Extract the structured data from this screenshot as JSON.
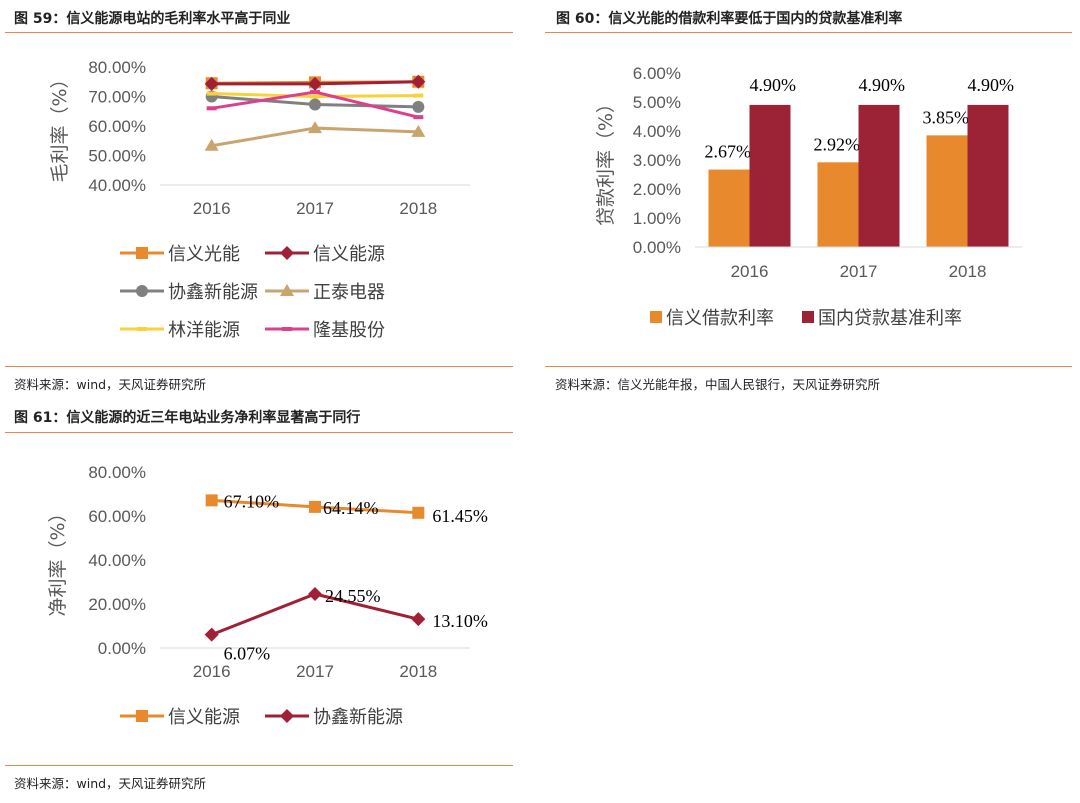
{
  "fig59": {
    "title": "图 59：信义能源电站的毛利率水平高于同业",
    "source": "资料来源：wind，天风证券研究所"
  },
  "fig60": {
    "title": "图 60：信义光能的借款利率要低于国内的贷款基准利率",
    "source": "资料来源：信义光能年报，中国人民银行，天风证券研究所"
  },
  "fig61": {
    "title": "图 61：信义能源的近三年电站业务净利率显著高于同行",
    "source": "资料来源：wind，天风证券研究所"
  },
  "chart_data": [
    {
      "id": "fig59",
      "type": "line",
      "x": [
        "2016",
        "2017",
        "2018"
      ],
      "ylabel": "毛利率（%）",
      "ylim": [
        40,
        80
      ],
      "yticks": [
        "40.00%",
        "50.00%",
        "60.00%",
        "70.00%",
        "80.00%"
      ],
      "grid": false,
      "legend": "bottom",
      "series": [
        {
          "name": "信义光能",
          "values": [
            74.5,
            74.8,
            75.0
          ],
          "color": "#e8892e",
          "marker": "square"
        },
        {
          "name": "信义能源",
          "values": [
            74.3,
            74.3,
            75.0
          ],
          "color": "#a02035",
          "marker": "diamond"
        },
        {
          "name": "协鑫新能源",
          "values": [
            70.0,
            67.3,
            66.5
          ],
          "color": "#808080",
          "marker": "circle"
        },
        {
          "name": "正泰电器",
          "values": [
            53.3,
            59.3,
            58.0
          ],
          "color": "#c9a46c",
          "marker": "triangle"
        },
        {
          "name": "林洋能源",
          "values": [
            71.0,
            70.0,
            70.3
          ],
          "color": "#f7d23a",
          "marker": "dash"
        },
        {
          "name": "隆基股份",
          "values": [
            66.0,
            71.5,
            63.0
          ],
          "color": "#dc3f8c",
          "marker": "dash"
        }
      ]
    },
    {
      "id": "fig60",
      "type": "bar",
      "categories": [
        "2016",
        "2017",
        "2018"
      ],
      "ylabel": "贷款利率（%）",
      "ylim": [
        0,
        6
      ],
      "yticks": [
        "0.00%",
        "1.00%",
        "2.00%",
        "3.00%",
        "4.00%",
        "5.00%",
        "6.00%"
      ],
      "grid": false,
      "legend": "bottom",
      "series": [
        {
          "name": "信义借款利率",
          "values": [
            2.67,
            2.92,
            3.85
          ],
          "labels": [
            "2.67%",
            "2.92%",
            "3.85%"
          ],
          "color": "#e8892e"
        },
        {
          "name": "国内贷款基准利率",
          "values": [
            4.9,
            4.9,
            4.9
          ],
          "labels": [
            "4.90%",
            "4.90%",
            "4.90%"
          ],
          "color": "#9b2335"
        }
      ]
    },
    {
      "id": "fig61",
      "type": "line",
      "x": [
        "2016",
        "2017",
        "2018"
      ],
      "ylabel": "净利率（%）",
      "ylim": [
        0,
        80
      ],
      "yticks": [
        "0.00%",
        "20.00%",
        "40.00%",
        "60.00%",
        "80.00%"
      ],
      "grid": false,
      "legend": "bottom",
      "series": [
        {
          "name": "信义能源",
          "values": [
            67.1,
            64.14,
            61.45
          ],
          "labels": [
            "67.10%",
            "64.14%",
            "61.45%"
          ],
          "color": "#e8892e",
          "marker": "square"
        },
        {
          "name": "协鑫新能源",
          "values": [
            6.07,
            24.55,
            13.1
          ],
          "labels": [
            "6.07%",
            "24.55%",
            "13.10%"
          ],
          "color": "#a02035",
          "marker": "diamond"
        }
      ]
    }
  ]
}
